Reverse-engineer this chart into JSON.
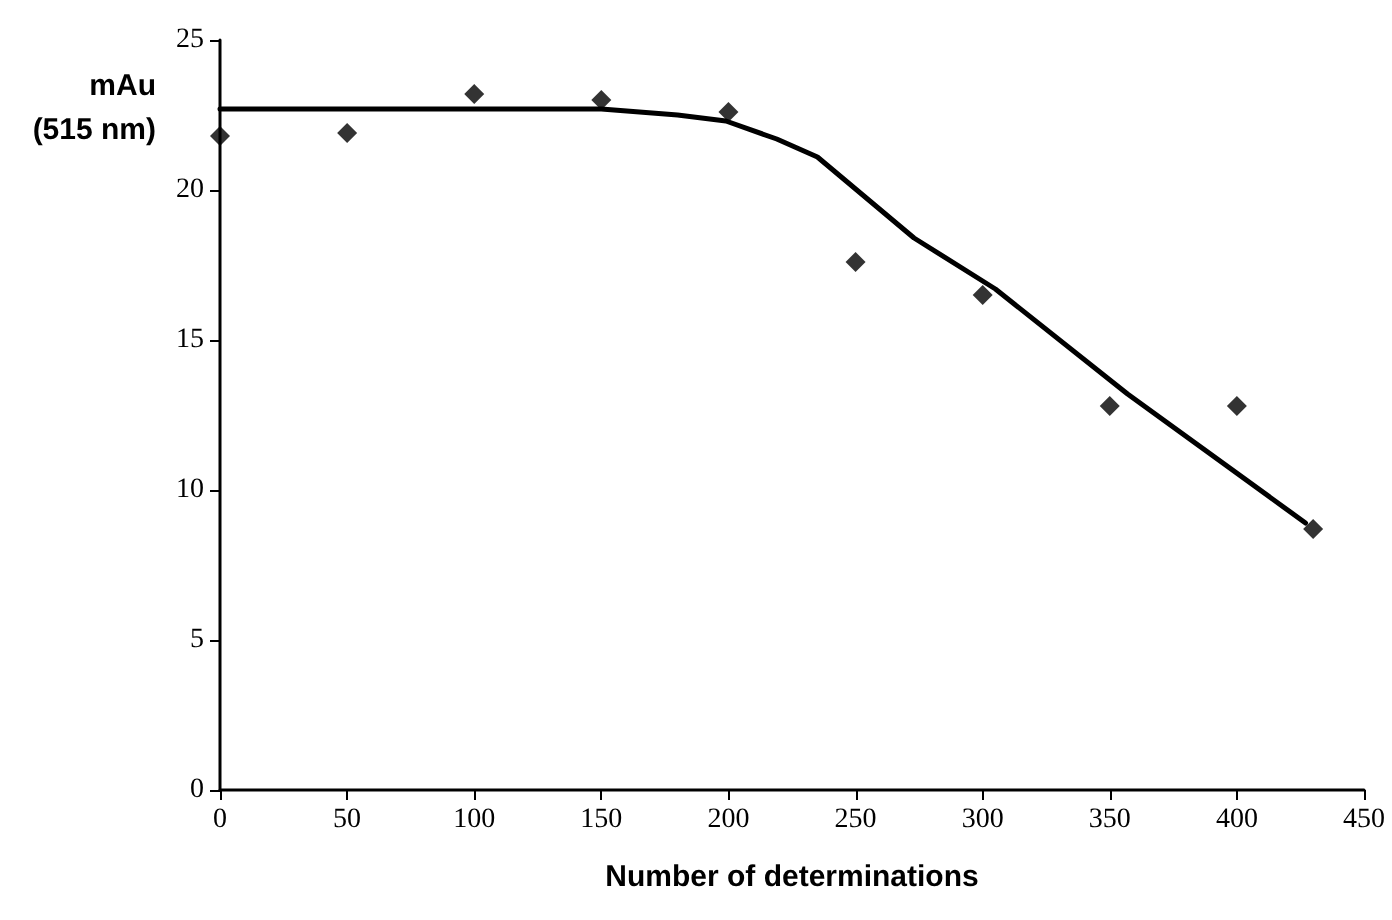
{
  "chart_data": {
    "type": "scatter",
    "xlabel": "Number of determinations",
    "ylabel": "mAu\n(515 nm)",
    "xlim": [
      0,
      450
    ],
    "xticks": [
      0,
      50,
      100,
      150,
      200,
      250,
      300,
      350,
      400,
      450
    ],
    "ylim": [
      0,
      25
    ],
    "yticks": [
      0,
      5,
      10,
      15,
      20,
      25
    ],
    "grid": false,
    "marker": "diamond",
    "series": [
      {
        "color": "#000000",
        "x": [
          0,
          50,
          100,
          150,
          200,
          250,
          300,
          350,
          400,
          430
        ],
        "values": [
          21.8,
          21.9,
          23.2,
          23.0,
          22.6,
          17.6,
          16.5,
          12.8,
          12.8,
          8.7
        ]
      },
      {
        "type": "line",
        "color": "#000000",
        "marker": "none",
        "line_style": "solid",
        "x": [
          0,
          150,
          180,
          199,
          219,
          235,
          273,
          305,
          357,
          427
        ],
        "values": [
          22.7,
          22.7,
          22.5,
          22.3,
          21.7,
          21.1,
          18.4,
          16.7,
          13.2,
          8.9
        ]
      }
    ]
  }
}
